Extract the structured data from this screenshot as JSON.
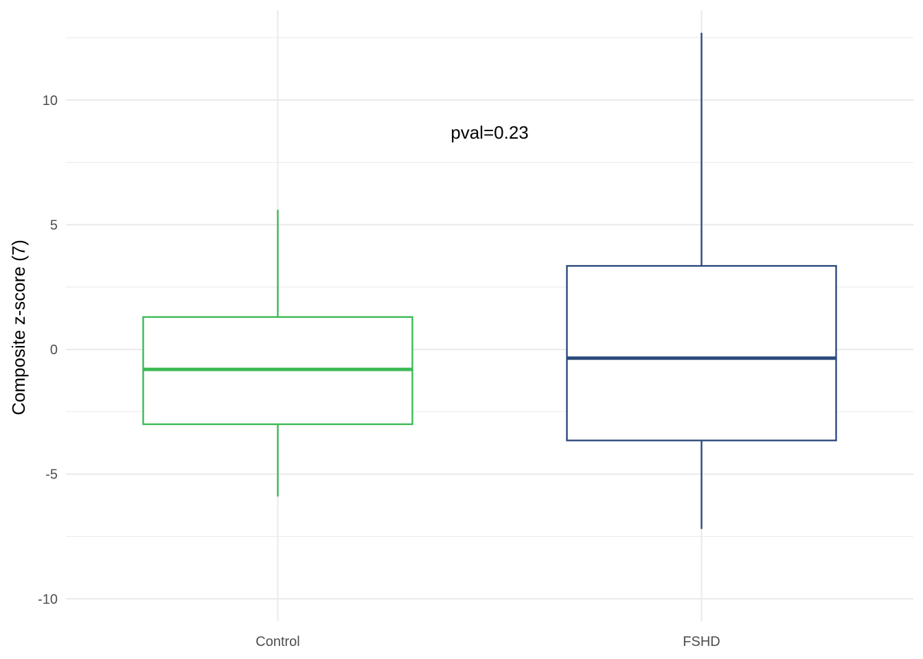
{
  "chart_data": {
    "type": "box",
    "title": "",
    "xlabel": "",
    "ylabel": "Composite z-score (7)",
    "ylim": [
      -10.9,
      13.6
    ],
    "y_ticks": [
      -10,
      -5,
      0,
      5,
      10
    ],
    "y_tick_labels": [
      "-10",
      "-5",
      "0",
      "5",
      "10"
    ],
    "y_minor_ticks": [
      -7.5,
      -2.5,
      2.5,
      7.5,
      12.5
    ],
    "categories": [
      "Control",
      "FSHD"
    ],
    "boxes": [
      {
        "category": "Control",
        "whisker_low": -5.9,
        "q1": -3.0,
        "median": -0.8,
        "q3": 1.3,
        "whisker_high": 5.6,
        "color": "#3cb954"
      },
      {
        "category": "FSHD",
        "whisker_low": -7.2,
        "q1": -3.65,
        "median": -0.35,
        "q3": 3.35,
        "whisker_high": 12.7,
        "color": "#2c4a7c"
      }
    ],
    "annotation": {
      "text": "pval=0.23",
      "x_between": [
        "Control",
        "FSHD"
      ],
      "y": 8.7
    },
    "grid": true,
    "legend": "none"
  }
}
